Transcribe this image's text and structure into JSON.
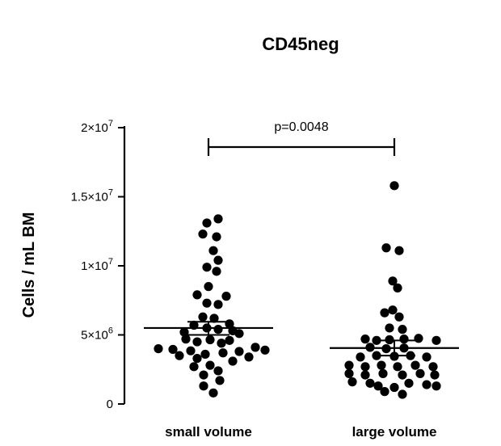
{
  "chart_data": {
    "type": "scatter",
    "title": "CD45neg",
    "xlabel": "",
    "ylabel": "Cells / mL BM",
    "ylim": [
      0,
      20000000
    ],
    "yticks": [
      {
        "value": 0,
        "label": "0",
        "base": "0",
        "exp": ""
      },
      {
        "value": 5000000,
        "label": "5×10⁶",
        "base": "5×10",
        "exp": "6"
      },
      {
        "value": 10000000,
        "label": "1×10⁷",
        "base": "1×10",
        "exp": "7"
      },
      {
        "value": 15000000,
        "label": "1.5×10⁷",
        "base": "1.5×10",
        "exp": "7"
      },
      {
        "value": 20000000,
        "label": "2×10⁷",
        "base": "2×10",
        "exp": "7"
      }
    ],
    "categories": [
      "small volume",
      "large volume"
    ],
    "groups": [
      {
        "name": "small volume",
        "mean": 5500000,
        "sem_low": 5000000,
        "sem_high": 5950000,
        "points": [
          {
            "v": 13400000,
            "dx": 12
          },
          {
            "v": 13100000,
            "dx": -2
          },
          {
            "v": 12300000,
            "dx": -7
          },
          {
            "v": 12100000,
            "dx": 10
          },
          {
            "v": 11100000,
            "dx": 6
          },
          {
            "v": 10400000,
            "dx": 12
          },
          {
            "v": 9900000,
            "dx": -2
          },
          {
            "v": 9600000,
            "dx": 10
          },
          {
            "v": 8500000,
            "dx": 0
          },
          {
            "v": 7900000,
            "dx": -14
          },
          {
            "v": 7800000,
            "dx": 22
          },
          {
            "v": 7300000,
            "dx": -2
          },
          {
            "v": 7200000,
            "dx": 12
          },
          {
            "v": 6300000,
            "dx": -7
          },
          {
            "v": 6200000,
            "dx": 7
          },
          {
            "v": 5800000,
            "dx": 26
          },
          {
            "v": 5700000,
            "dx": -18
          },
          {
            "v": 5500000,
            "dx": -2
          },
          {
            "v": 5400000,
            "dx": 12
          },
          {
            "v": 5300000,
            "dx": 30
          },
          {
            "v": 5200000,
            "dx": -30
          },
          {
            "v": 5100000,
            "dx": 38
          },
          {
            "v": 4700000,
            "dx": -28
          },
          {
            "v": 4650000,
            "dx": 2
          },
          {
            "v": 4600000,
            "dx": 26
          },
          {
            "v": 4500000,
            "dx": -14
          },
          {
            "v": 4400000,
            "dx": 16
          },
          {
            "v": 4100000,
            "dx": 58
          },
          {
            "v": 4000000,
            "dx": -62
          },
          {
            "v": 3950000,
            "dx": -44
          },
          {
            "v": 3900000,
            "dx": 70
          },
          {
            "v": 3850000,
            "dx": -22
          },
          {
            "v": 3800000,
            "dx": 38
          },
          {
            "v": 3700000,
            "dx": 18
          },
          {
            "v": 3600000,
            "dx": -4
          },
          {
            "v": 3500000,
            "dx": -36
          },
          {
            "v": 3400000,
            "dx": 50
          },
          {
            "v": 3300000,
            "dx": -14
          },
          {
            "v": 3100000,
            "dx": 30
          },
          {
            "v": 2800000,
            "dx": 2
          },
          {
            "v": 2700000,
            "dx": -18
          },
          {
            "v": 2400000,
            "dx": 12
          },
          {
            "v": 2100000,
            "dx": -6
          },
          {
            "v": 1700000,
            "dx": 14
          },
          {
            "v": 1300000,
            "dx": -6
          },
          {
            "v": 800000,
            "dx": 6
          }
        ]
      },
      {
        "name": "large volume",
        "mean": 4050000,
        "sem_low": 3500000,
        "sem_high": 4600000,
        "points": [
          {
            "v": 15800000,
            "dx": 0
          },
          {
            "v": 11300000,
            "dx": -10
          },
          {
            "v": 11100000,
            "dx": 6
          },
          {
            "v": 8900000,
            "dx": -2
          },
          {
            "v": 8400000,
            "dx": 4
          },
          {
            "v": 6800000,
            "dx": -2
          },
          {
            "v": 6600000,
            "dx": -12
          },
          {
            "v": 6300000,
            "dx": 6
          },
          {
            "v": 5500000,
            "dx": -6
          },
          {
            "v": 5400000,
            "dx": 10
          },
          {
            "v": 4700000,
            "dx": -36
          },
          {
            "v": 4600000,
            "dx": -22
          },
          {
            "v": 4650000,
            "dx": -6
          },
          {
            "v": 4700000,
            "dx": 12
          },
          {
            "v": 4750000,
            "dx": 30
          },
          {
            "v": 4600000,
            "dx": 52
          },
          {
            "v": 4100000,
            "dx": -30
          },
          {
            "v": 4000000,
            "dx": -10
          },
          {
            "v": 4050000,
            "dx": 12
          },
          {
            "v": 3400000,
            "dx": -42
          },
          {
            "v": 3500000,
            "dx": -22
          },
          {
            "v": 3450000,
            "dx": 0
          },
          {
            "v": 3500000,
            "dx": 20
          },
          {
            "v": 3400000,
            "dx": 40
          },
          {
            "v": 2800000,
            "dx": -56
          },
          {
            "v": 2700000,
            "dx": -36
          },
          {
            "v": 2800000,
            "dx": -16
          },
          {
            "v": 2700000,
            "dx": 4
          },
          {
            "v": 2800000,
            "dx": 26
          },
          {
            "v": 2700000,
            "dx": 48
          },
          {
            "v": 2200000,
            "dx": -56
          },
          {
            "v": 2100000,
            "dx": -36
          },
          {
            "v": 2200000,
            "dx": -14
          },
          {
            "v": 2100000,
            "dx": 10
          },
          {
            "v": 2200000,
            "dx": 32
          },
          {
            "v": 2100000,
            "dx": 50
          },
          {
            "v": 1600000,
            "dx": -52
          },
          {
            "v": 1500000,
            "dx": -30
          },
          {
            "v": 1500000,
            "dx": 18
          },
          {
            "v": 1400000,
            "dx": 40
          },
          {
            "v": 1300000,
            "dx": -20
          },
          {
            "v": 1200000,
            "dx": 0
          },
          {
            "v": 1300000,
            "dx": 52
          },
          {
            "v": 900000,
            "dx": -12
          },
          {
            "v": 700000,
            "dx": 10
          }
        ]
      }
    ],
    "annotation": {
      "text": "p=0.0048",
      "between": [
        "small volume",
        "large volume"
      ]
    },
    "grid": false,
    "legend": "none",
    "marker_color": "#000000"
  }
}
